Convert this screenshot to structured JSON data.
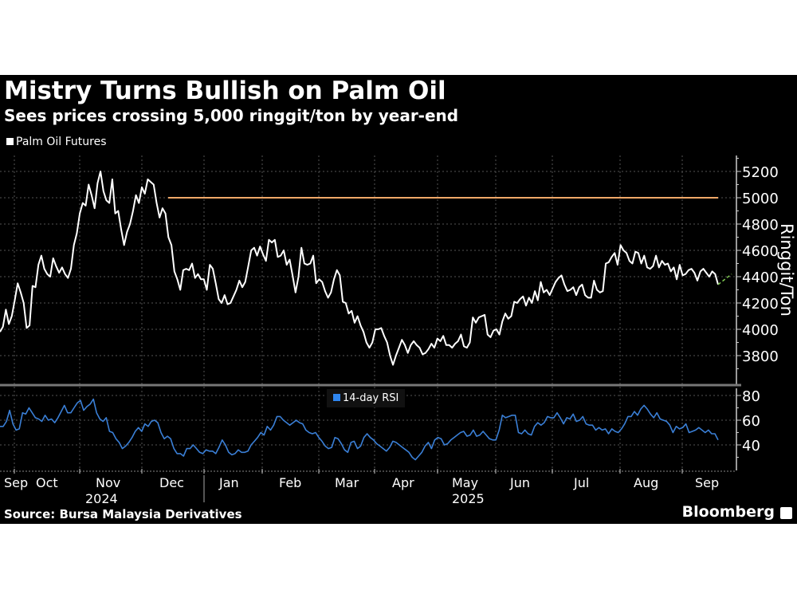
{
  "header": {
    "title": "Mistry Turns Bullish on Palm Oil",
    "subtitle": "Sees prices crossing 5,000 ringgit/ton by year-end"
  },
  "legend": {
    "price_label": "Palm Oil Futures",
    "rsi_label": "14-day RSI"
  },
  "footer": {
    "source": "Source: Bursa Malaysia Derivatives",
    "brand": "Bloomberg"
  },
  "axes": {
    "price_ylabel": "Ringgit/Ton",
    "price_ticks": [
      "5200",
      "5000",
      "4800",
      "4600",
      "4400",
      "4200",
      "4000",
      "3800"
    ],
    "rsi_ticks": [
      "80",
      "60",
      "40"
    ],
    "months": [
      "Sep",
      "Oct",
      "Nov",
      "Dec",
      "Jan",
      "Feb",
      "Mar",
      "Apr",
      "May",
      "Jun",
      "Jul",
      "Aug",
      "Sep"
    ],
    "years": [
      "2024",
      "2025"
    ]
  },
  "colors": {
    "background": "#000000",
    "price_line": "#ffffff",
    "target_line": "#f0a868",
    "rsi_line": "#3a7fd6",
    "projection": "#7ec850"
  },
  "chart_data": [
    {
      "type": "line",
      "title": "Mistry Turns Bullish on Palm Oil",
      "subtitle": "Sees prices crossing 5,000 ringgit/ton by year-end",
      "series": [
        {
          "name": "Palm Oil Futures",
          "values": [
            3980,
            4020,
            4150,
            4040,
            4100,
            4220,
            4350,
            4280,
            4200,
            4010,
            4030,
            4330,
            4320,
            4490,
            4560,
            4460,
            4420,
            4400,
            4540,
            4480,
            4430,
            4470,
            4420,
            4390,
            4460,
            4640,
            4730,
            4880,
            4960,
            4940,
            5100,
            5020,
            4920,
            5110,
            5200,
            5050,
            4980,
            4960,
            5140,
            4880,
            4900,
            4760,
            4640,
            4740,
            4800,
            4900,
            5020,
            4960,
            5080,
            5030,
            5140,
            5120,
            5100,
            4960,
            4850,
            4920,
            4880,
            4700,
            4640,
            4440,
            4380,
            4300,
            4450,
            4460,
            4450,
            4500,
            4390,
            4420,
            4380,
            4380,
            4300,
            4490,
            4460,
            4350,
            4230,
            4200,
            4260,
            4190,
            4200,
            4250,
            4300,
            4370,
            4320,
            4360,
            4480,
            4600,
            4620,
            4560,
            4630,
            4570,
            4520,
            4680,
            4660,
            4680,
            4550,
            4560,
            4600,
            4490,
            4530,
            4410,
            4280,
            4400,
            4620,
            4500,
            4490,
            4500,
            4560,
            4350,
            4380,
            4360,
            4290,
            4240,
            4280,
            4380,
            4450,
            4410,
            4210,
            4200,
            4120,
            4140,
            4050,
            4100,
            4030,
            3980,
            3900,
            3860,
            3900,
            4000,
            4000,
            4010,
            3950,
            3900,
            3800,
            3730,
            3800,
            3860,
            3920,
            3880,
            3820,
            3880,
            3910,
            3880,
            3860,
            3810,
            3820,
            3850,
            3890,
            3860,
            3930,
            3910,
            3950,
            3880,
            3880,
            3860,
            3890,
            3910,
            3960,
            3870,
            3860,
            3900,
            4090,
            4050,
            4090,
            4100,
            4110,
            3960,
            3940,
            3990,
            4000,
            3960,
            4060,
            4120,
            4080,
            4100,
            4210,
            4200,
            4230,
            4250,
            4180,
            4240,
            4200,
            4290,
            4220,
            4360,
            4280,
            4300,
            4260,
            4310,
            4360,
            4390,
            4410,
            4340,
            4290,
            4300,
            4320,
            4260,
            4320,
            4340,
            4260,
            4240,
            4240,
            4370,
            4300,
            4280,
            4290,
            4500,
            4510,
            4550,
            4580,
            4490,
            4640,
            4600,
            4580,
            4520,
            4500,
            4590,
            4580,
            4500,
            4560,
            4470,
            4460,
            4480,
            4560,
            4470,
            4520,
            4490,
            4500,
            4440,
            4470,
            4380,
            4490,
            4410,
            4420,
            4450,
            4460,
            4430,
            4370,
            4440,
            4460,
            4430,
            4400,
            4440,
            4420,
            4340
          ]
        },
        {
          "name": "5,000 target",
          "values": [
            5000
          ],
          "x_start": "Dec 2024",
          "x_end": "Sep 2025"
        },
        {
          "name": "Projection",
          "values": [
            4340,
            4420
          ]
        }
      ],
      "xlabel": "",
      "ylabel": "Ringgit/Ton",
      "ylim": [
        3650,
        5300
      ],
      "categories": [
        "Sep",
        "Oct",
        "Nov",
        "Dec",
        "Jan",
        "Feb",
        "Mar",
        "Apr",
        "May",
        "Jun",
        "Jul",
        "Aug",
        "Sep"
      ],
      "grid": true,
      "legend_position": "top-left"
    },
    {
      "type": "line",
      "title": "14-day RSI",
      "series": [
        {
          "name": "14-day RSI",
          "values": [
            55,
            55,
            59,
            68,
            57,
            52,
            53,
            66,
            65,
            70,
            66,
            62,
            61,
            59,
            64,
            60,
            61,
            58,
            62,
            67,
            72,
            66,
            66,
            70,
            74,
            76,
            68,
            71,
            73,
            77,
            66,
            61,
            59,
            62,
            51,
            50,
            45,
            42,
            37,
            39,
            42,
            46,
            51,
            54,
            51,
            57,
            55,
            59,
            60,
            58,
            50,
            45,
            47,
            45,
            37,
            33,
            33,
            31,
            37,
            37,
            40,
            37,
            34,
            33,
            36,
            35,
            35,
            33,
            38,
            44,
            40,
            34,
            32,
            33,
            36,
            34,
            34,
            35,
            40,
            43,
            46,
            50,
            48,
            55,
            52,
            56,
            63,
            63,
            60,
            58,
            56,
            58,
            60,
            58,
            57,
            52,
            50,
            49,
            50,
            46,
            43,
            39,
            37,
            38,
            46,
            45,
            41,
            36,
            34,
            42,
            43,
            37,
            39,
            46,
            49,
            46,
            44,
            41,
            39,
            37,
            35,
            38,
            43,
            42,
            40,
            38,
            36,
            34,
            30,
            28,
            31,
            34,
            39,
            42,
            37,
            44,
            46,
            45,
            40,
            41,
            44,
            46,
            48,
            50,
            51,
            47,
            48,
            52,
            47,
            48,
            51,
            48,
            45,
            44,
            44,
            52,
            64,
            62,
            63,
            64,
            64,
            50,
            49,
            52,
            49,
            48,
            55,
            58,
            56,
            58,
            63,
            62,
            62,
            66,
            62,
            57,
            62,
            61,
            65,
            59,
            60,
            63,
            57,
            56,
            56,
            52,
            54,
            52,
            53,
            49,
            53,
            51,
            50,
            53,
            57,
            63,
            63,
            67,
            64,
            69,
            72,
            69,
            65,
            62,
            66,
            61,
            60,
            59,
            56,
            50,
            55,
            53,
            54,
            57,
            50,
            51,
            52,
            54,
            52,
            50,
            52,
            49,
            49,
            44
          ]
        }
      ],
      "ylim": [
        22,
        84
      ],
      "yticks": [
        40,
        60,
        80
      ],
      "grid": true,
      "legend_position": "top-center"
    }
  ]
}
